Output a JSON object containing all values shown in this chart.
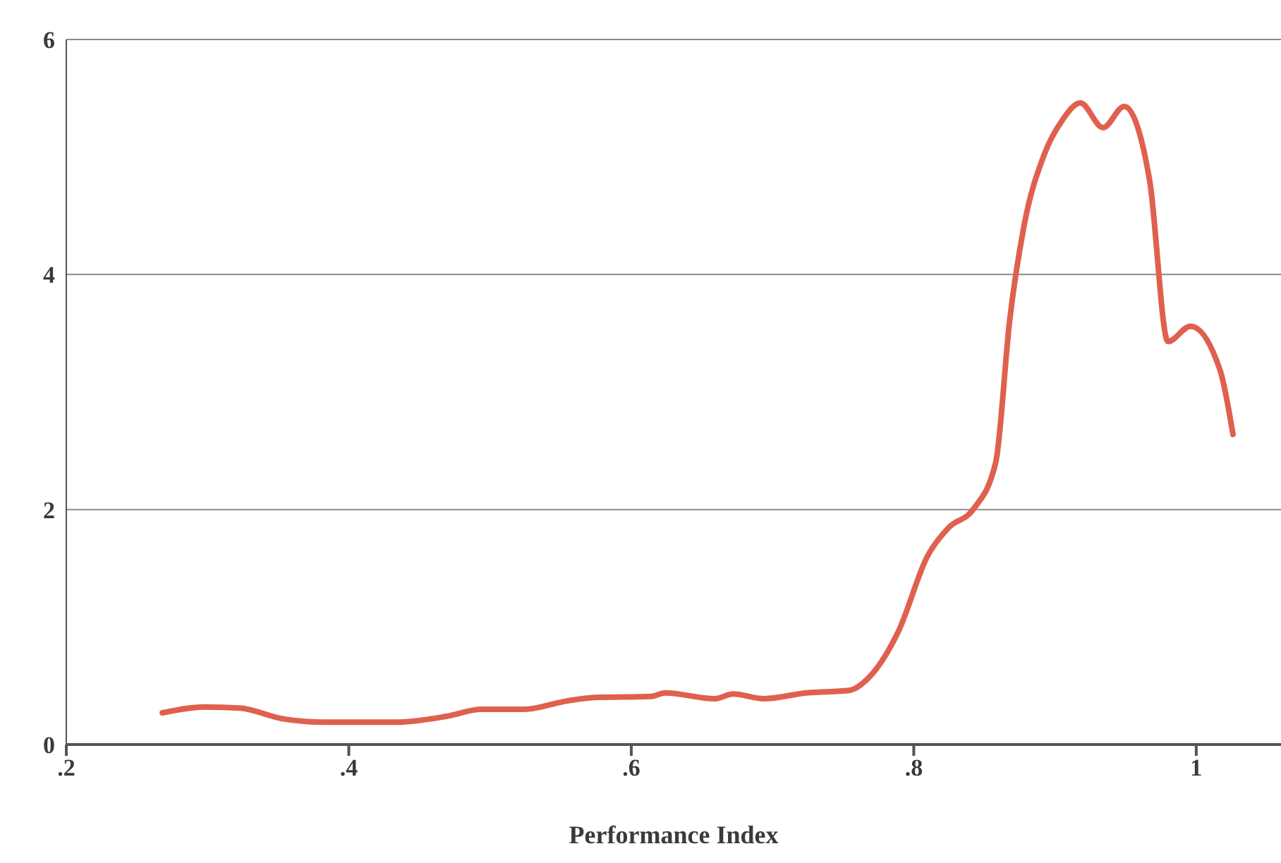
{
  "chart_data": {
    "type": "line",
    "xlabel": "Performance Index",
    "x": [
      0.268,
      0.298,
      0.323,
      0.353,
      0.383,
      0.434,
      0.469,
      0.494,
      0.524,
      0.554,
      0.574,
      0.614,
      0.624,
      0.659,
      0.672,
      0.694,
      0.724,
      0.754,
      0.769,
      0.789,
      0.81,
      0.825,
      0.842,
      0.858,
      0.868,
      0.878,
      0.892,
      0.905,
      0.918,
      0.934,
      0.949,
      0.967,
      0.98,
      0.996,
      1.017,
      1.026
    ],
    "series": [
      {
        "color": "#e0604f",
        "values": [
          0.27,
          0.32,
          0.31,
          0.22,
          0.19,
          0.19,
          0.24,
          0.3,
          0.3,
          0.37,
          0.4,
          0.41,
          0.44,
          0.39,
          0.43,
          0.39,
          0.44,
          0.46,
          0.58,
          0.96,
          1.61,
          1.85,
          2.0,
          2.4,
          3.62,
          4.41,
          5.01,
          5.31,
          5.46,
          5.25,
          5.43,
          4.8,
          3.43,
          3.56,
          3.18,
          2.64
        ]
      }
    ],
    "xlim": [
      0.2,
      1.06
    ],
    "xticks": [
      {
        "value": 0.2,
        "label": ".2"
      },
      {
        "value": 0.4,
        "label": ".4"
      },
      {
        "value": 0.6,
        "label": ".6"
      },
      {
        "value": 0.8,
        "label": ".8"
      },
      {
        "value": 1,
        "label": "1"
      }
    ],
    "ylim": [
      0,
      6
    ],
    "yticks": [
      0,
      2,
      4,
      6
    ],
    "grid": "y",
    "marker": "none",
    "line_style": "solid"
  }
}
